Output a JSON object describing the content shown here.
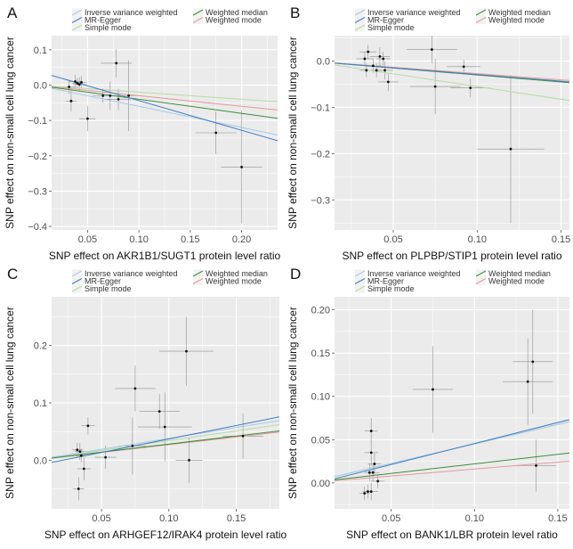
{
  "method_colors": {
    "ivw": "#a9c8e6",
    "mr_egger": "#3f7fc4",
    "simple_mode": "#b6dba5",
    "weighted_median": "#3a8f3a",
    "weighted_mode": "#e79a9a"
  },
  "chart_data": [
    {
      "type": "scatter",
      "panel_label": "A",
      "xlabel": "SNP effect on AKR1B1/SUGT1 protein level ratio",
      "ylabel": "SNP effect on non-small cell lung cancer",
      "xlim": [
        0.015,
        0.235
      ],
      "ylim": [
        -0.41,
        0.14
      ],
      "xticks": [
        0.05,
        0.1,
        0.15,
        0.2
      ],
      "xtick_labels": [
        "0.05",
        "0.10",
        "0.15",
        "0.20"
      ],
      "yticks": [
        0.1,
        0.0,
        -0.1,
        -0.2,
        -0.3,
        -0.4
      ],
      "ytick_labels": [
        "0.1",
        "0.0",
        "−0.1",
        "−0.2",
        "−0.3",
        "−0.4"
      ],
      "legend": [
        "Inverse variance weighted",
        "MR-Egger",
        "Simple mode",
        "Weighted median",
        "Weighted mode"
      ],
      "points": [
        {
          "x": 0.032,
          "y": -0.005,
          "xerr": 0.006,
          "yerr": 0.02
        },
        {
          "x": 0.034,
          "y": -0.045,
          "xerr": 0.005,
          "yerr": 0.03
        },
        {
          "x": 0.038,
          "y": 0.01,
          "xerr": 0.006,
          "yerr": 0.02
        },
        {
          "x": 0.04,
          "y": 0.005,
          "xerr": 0.005,
          "yerr": 0.015
        },
        {
          "x": 0.042,
          "y": 0.002,
          "xerr": 0.006,
          "yerr": 0.02
        },
        {
          "x": 0.044,
          "y": 0.008,
          "xerr": 0.005,
          "yerr": 0.018
        },
        {
          "x": 0.05,
          "y": -0.095,
          "xerr": 0.008,
          "yerr": 0.035
        },
        {
          "x": 0.065,
          "y": -0.03,
          "xerr": 0.01,
          "yerr": 0.02
        },
        {
          "x": 0.072,
          "y": -0.03,
          "xerr": 0.009,
          "yerr": 0.04
        },
        {
          "x": 0.078,
          "y": 0.062,
          "xerr": 0.015,
          "yerr": 0.04
        },
        {
          "x": 0.08,
          "y": -0.04,
          "xerr": 0.012,
          "yerr": 0.03
        },
        {
          "x": 0.09,
          "y": -0.03,
          "xerr": 0.01,
          "yerr": 0.1
        },
        {
          "x": 0.175,
          "y": -0.135,
          "xerr": 0.02,
          "yerr": 0.06
        },
        {
          "x": 0.2,
          "y": -0.232,
          "xerr": 0.02,
          "yerr": 0.16
        }
      ],
      "lines": [
        {
          "method": "ivw",
          "intercept": 0.0,
          "slope": -0.6
        },
        {
          "method": "mr_egger",
          "intercept": 0.04,
          "slope": -0.84
        },
        {
          "method": "simple_mode",
          "intercept": 0.0,
          "slope": -0.2
        },
        {
          "method": "weighted_median",
          "intercept": 0.0,
          "slope": -0.4
        },
        {
          "method": "weighted_mode",
          "intercept": 0.0,
          "slope": -0.3
        }
      ]
    },
    {
      "type": "scatter",
      "panel_label": "B",
      "xlabel": "SNP effect on PLPBP/STIP1 protein level ratio",
      "ylabel": "SNP effect on non-small cell lung cancer",
      "xlim": [
        0.015,
        0.155
      ],
      "ylim": [
        -0.365,
        0.055
      ],
      "xticks": [
        0.05,
        0.1,
        0.15
      ],
      "xtick_labels": [
        "0.05",
        "0.10",
        "0.15"
      ],
      "yticks": [
        0.0,
        -0.1,
        -0.2,
        -0.3
      ],
      "ytick_labels": [
        "0.0",
        "−0.1",
        "−0.2",
        "−0.3"
      ],
      "legend": [
        "Inverse variance weighted",
        "MR-Egger",
        "Simple mode",
        "Weighted median",
        "Weighted mode"
      ],
      "points": [
        {
          "x": 0.033,
          "y": 0.005,
          "xerr": 0.005,
          "yerr": 0.015
        },
        {
          "x": 0.034,
          "y": -0.02,
          "xerr": 0.004,
          "yerr": 0.015
        },
        {
          "x": 0.035,
          "y": 0.02,
          "xerr": 0.005,
          "yerr": 0.015
        },
        {
          "x": 0.038,
          "y": -0.01,
          "xerr": 0.005,
          "yerr": 0.015
        },
        {
          "x": 0.04,
          "y": -0.02,
          "xerr": 0.004,
          "yerr": 0.015
        },
        {
          "x": 0.042,
          "y": 0.01,
          "xerr": 0.006,
          "yerr": 0.02
        },
        {
          "x": 0.044,
          "y": 0.005,
          "xerr": 0.004,
          "yerr": 0.015
        },
        {
          "x": 0.045,
          "y": -0.02,
          "xerr": 0.005,
          "yerr": 0.02
        },
        {
          "x": 0.047,
          "y": -0.045,
          "xerr": 0.006,
          "yerr": 0.02
        },
        {
          "x": 0.073,
          "y": 0.025,
          "xerr": 0.015,
          "yerr": 0.03
        },
        {
          "x": 0.075,
          "y": -0.055,
          "xerr": 0.015,
          "yerr": 0.06
        },
        {
          "x": 0.092,
          "y": -0.012,
          "xerr": 0.01,
          "yerr": 0.015
        },
        {
          "x": 0.096,
          "y": -0.058,
          "xerr": 0.012,
          "yerr": 0.02
        },
        {
          "x": 0.12,
          "y": -0.19,
          "xerr": 0.02,
          "yerr": 0.16
        }
      ],
      "lines": [
        {
          "method": "ivw",
          "intercept": 0.0,
          "slope": -0.3
        },
        {
          "method": "mr_egger",
          "intercept": 0.0,
          "slope": -0.29
        },
        {
          "method": "simple_mode",
          "intercept": 0.0,
          "slope": -0.55
        },
        {
          "method": "weighted_median",
          "intercept": 0.0,
          "slope": -0.3
        },
        {
          "method": "weighted_mode",
          "intercept": 0.0,
          "slope": -0.27
        }
      ]
    },
    {
      "type": "scatter",
      "panel_label": "C",
      "xlabel": "SNP effect on ARHGEF12/IRAK4 protein level ratio",
      "ylabel": "SNP effect on non-small cell lung cancer",
      "xlim": [
        0.013,
        0.182
      ],
      "ylim": [
        -0.085,
        0.285
      ],
      "xticks": [
        0.05,
        0.1,
        0.15
      ],
      "xtick_labels": [
        "0.05",
        "0.10",
        "0.15"
      ],
      "yticks": [
        0.0,
        0.1,
        0.2
      ],
      "ytick_labels": [
        "0.0",
        "0.1",
        "0.2"
      ],
      "legend": [
        "Inverse variance weighted",
        "MR-Egger",
        "Simple mode",
        "Weighted median",
        "Weighted mode"
      ],
      "points": [
        {
          "x": 0.032,
          "y": 0.018,
          "xerr": 0.004,
          "yerr": 0.012
        },
        {
          "x": 0.033,
          "y": -0.05,
          "xerr": 0.004,
          "yerr": 0.02
        },
        {
          "x": 0.034,
          "y": 0.015,
          "xerr": 0.004,
          "yerr": 0.015
        },
        {
          "x": 0.035,
          "y": 0.008,
          "xerr": 0.004,
          "yerr": 0.012
        },
        {
          "x": 0.037,
          "y": -0.015,
          "xerr": 0.005,
          "yerr": 0.02
        },
        {
          "x": 0.04,
          "y": 0.06,
          "xerr": 0.005,
          "yerr": 0.015
        },
        {
          "x": 0.053,
          "y": 0.005,
          "xerr": 0.008,
          "yerr": 0.02
        },
        {
          "x": 0.073,
          "y": 0.025,
          "xerr": 0.01,
          "yerr": 0.05
        },
        {
          "x": 0.075,
          "y": 0.125,
          "xerr": 0.015,
          "yerr": 0.04
        },
        {
          "x": 0.093,
          "y": 0.085,
          "xerr": 0.015,
          "yerr": 0.03
        },
        {
          "x": 0.097,
          "y": 0.058,
          "xerr": 0.02,
          "yerr": 0.06
        },
        {
          "x": 0.113,
          "y": 0.19,
          "xerr": 0.02,
          "yerr": 0.06
        },
        {
          "x": 0.115,
          "y": 0.0,
          "xerr": 0.01,
          "yerr": 0.04
        },
        {
          "x": 0.155,
          "y": 0.042,
          "xerr": 0.015,
          "yerr": 0.04
        }
      ],
      "lines": [
        {
          "method": "ivw",
          "intercept": 0.0,
          "slope": 0.38
        },
        {
          "method": "mr_egger",
          "intercept": -0.01,
          "slope": 0.47
        },
        {
          "method": "simple_mode",
          "intercept": 0.0,
          "slope": 0.34
        },
        {
          "method": "weighted_median",
          "intercept": 0.0,
          "slope": 0.28
        },
        {
          "method": "weighted_mode",
          "intercept": 0.0,
          "slope": 0.27
        }
      ]
    },
    {
      "type": "scatter",
      "panel_label": "D",
      "xlabel": "SNP effect on BANK1/LBR protein level ratio",
      "ylabel": "SNP effect on non-small cell lung cancer",
      "xlim": [
        0.016,
        0.157
      ],
      "ylim": [
        -0.03,
        0.215
      ],
      "xticks": [
        0.05,
        0.1,
        0.15
      ],
      "xtick_labels": [
        "0.05",
        "0.10",
        "0.15"
      ],
      "yticks": [
        0.0,
        0.05,
        0.1,
        0.15,
        0.2
      ],
      "ytick_labels": [
        "0.00",
        "0.05",
        "0.10",
        "0.15",
        "0.20"
      ],
      "legend": [
        "Inverse variance weighted",
        "MR-Egger",
        "Simple mode",
        "Weighted median",
        "Weighted mode"
      ],
      "points": [
        {
          "x": 0.034,
          "y": -0.012,
          "xerr": 0.003,
          "yerr": 0.008
        },
        {
          "x": 0.036,
          "y": -0.01,
          "xerr": 0.003,
          "yerr": 0.008
        },
        {
          "x": 0.037,
          "y": 0.012,
          "xerr": 0.003,
          "yerr": 0.01
        },
        {
          "x": 0.038,
          "y": -0.01,
          "xerr": 0.004,
          "yerr": 0.01
        },
        {
          "x": 0.038,
          "y": 0.035,
          "xerr": 0.004,
          "yerr": 0.015
        },
        {
          "x": 0.038,
          "y": 0.06,
          "xerr": 0.004,
          "yerr": 0.015
        },
        {
          "x": 0.039,
          "y": 0.012,
          "xerr": 0.004,
          "yerr": 0.01
        },
        {
          "x": 0.04,
          "y": 0.022,
          "xerr": 0.004,
          "yerr": 0.012
        },
        {
          "x": 0.042,
          "y": 0.002,
          "xerr": 0.004,
          "yerr": 0.008
        },
        {
          "x": 0.075,
          "y": 0.108,
          "xerr": 0.012,
          "yerr": 0.05
        },
        {
          "x": 0.132,
          "y": 0.117,
          "xerr": 0.015,
          "yerr": 0.05
        },
        {
          "x": 0.135,
          "y": 0.14,
          "xerr": 0.012,
          "yerr": 0.06
        },
        {
          "x": 0.137,
          "y": 0.02,
          "xerr": 0.012,
          "yerr": 0.03
        }
      ],
      "lines": [
        {
          "method": "ivw",
          "intercept": 0.0,
          "slope": 0.45
        },
        {
          "method": "mr_egger",
          "intercept": -0.003,
          "slope": 0.485
        },
        {
          "method": "simple_mode",
          "intercept": 0.0,
          "slope": 0.45
        },
        {
          "method": "weighted_median",
          "intercept": 0.0,
          "slope": 0.22
        },
        {
          "method": "weighted_mode",
          "intercept": 0.0,
          "slope": 0.16
        }
      ]
    }
  ]
}
